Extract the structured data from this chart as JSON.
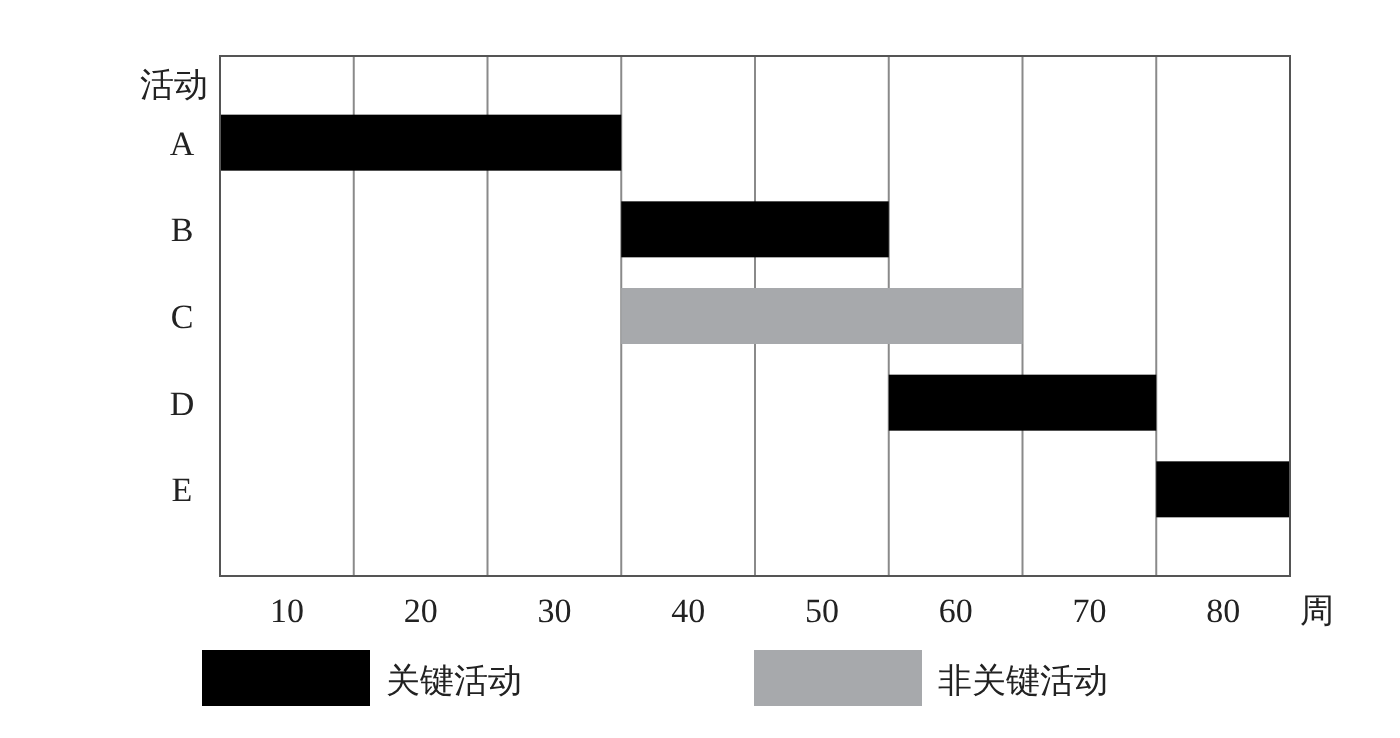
{
  "chart_data": {
    "type": "bar",
    "orientation": "horizontal",
    "ylabel": "活动",
    "xlabel": "周",
    "categories": [
      "A",
      "B",
      "C",
      "D",
      "E"
    ],
    "series": [
      {
        "name": "关键活动",
        "color": "#000000",
        "values": [
          30,
          20,
          null,
          20,
          10
        ],
        "base": [
          5,
          35,
          null,
          55,
          75
        ]
      },
      {
        "name": "非关键活动",
        "color": "#a7a9ac",
        "values": [
          null,
          null,
          30,
          null,
          null
        ],
        "base": [
          null,
          null,
          35,
          null,
          null
        ]
      }
    ],
    "xlim": [
      5,
      85
    ],
    "xticks": [
      {
        "value": 5,
        "label": null
      },
      {
        "value": 15,
        "label": null
      },
      {
        "value": 25,
        "label": null
      },
      {
        "value": 35,
        "label": null
      },
      {
        "value": 45,
        "label": null
      },
      {
        "value": 55,
        "label": null
      },
      {
        "value": 65,
        "label": null
      },
      {
        "value": 75,
        "label": null
      },
      {
        "value": 85,
        "label": null
      },
      10,
      20,
      30,
      40,
      50,
      60,
      70,
      80
    ],
    "grid": "x",
    "legend": "bottom"
  }
}
